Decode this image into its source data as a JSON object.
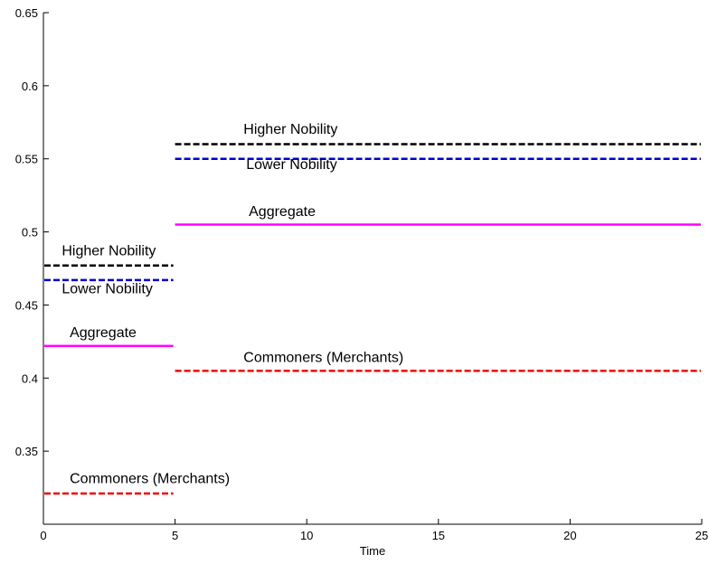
{
  "chart_data": {
    "type": "line",
    "title": "",
    "xlabel": "Time",
    "ylabel": "",
    "xlim": [
      0,
      25
    ],
    "ylim": [
      0.3,
      0.65
    ],
    "xticks": [
      0,
      5,
      10,
      15,
      20,
      25
    ],
    "xtick_labels": [
      "0",
      "5",
      "10",
      "15",
      "20",
      "25"
    ],
    "yticks": [
      0.35,
      0.4,
      0.45,
      0.5,
      0.55,
      0.6,
      0.65
    ],
    "ytick_labels": [
      "0.35",
      "0.4",
      "0.45",
      "0.5",
      "0.55",
      "0.6",
      "0.65"
    ],
    "grid": false,
    "legend": false,
    "series": [
      {
        "color": "#000000",
        "dash": "dashed",
        "segments": [
          {
            "x": [
              0,
              5
            ],
            "y": [
              0.477,
              0.477
            ]
          },
          {
            "x": [
              5,
              25
            ],
            "y": [
              0.56,
              0.56
            ]
          }
        ]
      },
      {
        "color": "#0000cc",
        "dash": "dashed",
        "segments": [
          {
            "x": [
              0,
              5
            ],
            "y": [
              0.467,
              0.467
            ]
          },
          {
            "x": [
              5,
              25
            ],
            "y": [
              0.55,
              0.55
            ]
          }
        ]
      },
      {
        "color": "#ff00ff",
        "dash": "solid",
        "segments": [
          {
            "x": [
              0,
              5
            ],
            "y": [
              0.422,
              0.422
            ]
          },
          {
            "x": [
              5,
              25
            ],
            "y": [
              0.505,
              0.505
            ]
          }
        ]
      },
      {
        "color": "#ee0000",
        "dash": "dashed",
        "segments": [
          {
            "x": [
              0,
              5
            ],
            "y": [
              0.321,
              0.321
            ]
          },
          {
            "x": [
              5,
              25
            ],
            "y": [
              0.405,
              0.405
            ]
          }
        ]
      }
    ],
    "annotations": [
      {
        "text": "Higher Nobility",
        "x": 0.7,
        "y": 0.484
      },
      {
        "text": "Lower Nobility",
        "x": 0.7,
        "y": 0.458
      },
      {
        "text": "Aggregate",
        "x": 1.0,
        "y": 0.428
      },
      {
        "text": "Commoners (Merchants)",
        "x": 1.0,
        "y": 0.328
      },
      {
        "text": "Higher Nobility",
        "x": 7.6,
        "y": 0.567
      },
      {
        "text": "Lower Nobility",
        "x": 7.7,
        "y": 0.543
      },
      {
        "text": "Aggregate",
        "x": 7.8,
        "y": 0.511
      },
      {
        "text": "Commoners (Merchants)",
        "x": 7.6,
        "y": 0.411
      }
    ]
  }
}
